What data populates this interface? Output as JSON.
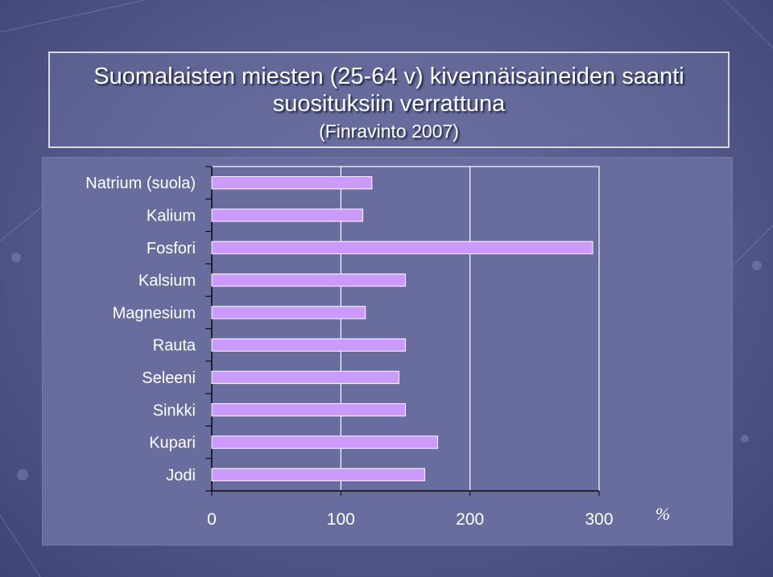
{
  "title": {
    "line1": "Suomalaisten miesten (25-64 v) kivennäisaineiden  saanti",
    "line2": "suosituksiin verrattuna",
    "subtitle": "(Finravinto 2007)"
  },
  "chart_data": {
    "type": "bar",
    "orientation": "horizontal",
    "categories": [
      "Natrium (suola)",
      "Kalium",
      "Fosfori",
      "Kalsium",
      "Magnesium",
      "Rauta",
      "Seleeni",
      "Sinkki",
      "Kupari",
      "Jodi"
    ],
    "values": [
      124,
      117,
      295,
      150,
      119,
      150,
      145,
      150,
      175,
      165
    ],
    "xlim": [
      0,
      300
    ],
    "xticks": [
      "0",
      "100",
      "200",
      "300"
    ],
    "xunit": "%",
    "grid": "vertical",
    "legend": "none",
    "colors": {
      "bar": "#cc99ff",
      "bar_edge": "#ffffff",
      "grid": "#ffffff",
      "axis": "#000000"
    }
  }
}
